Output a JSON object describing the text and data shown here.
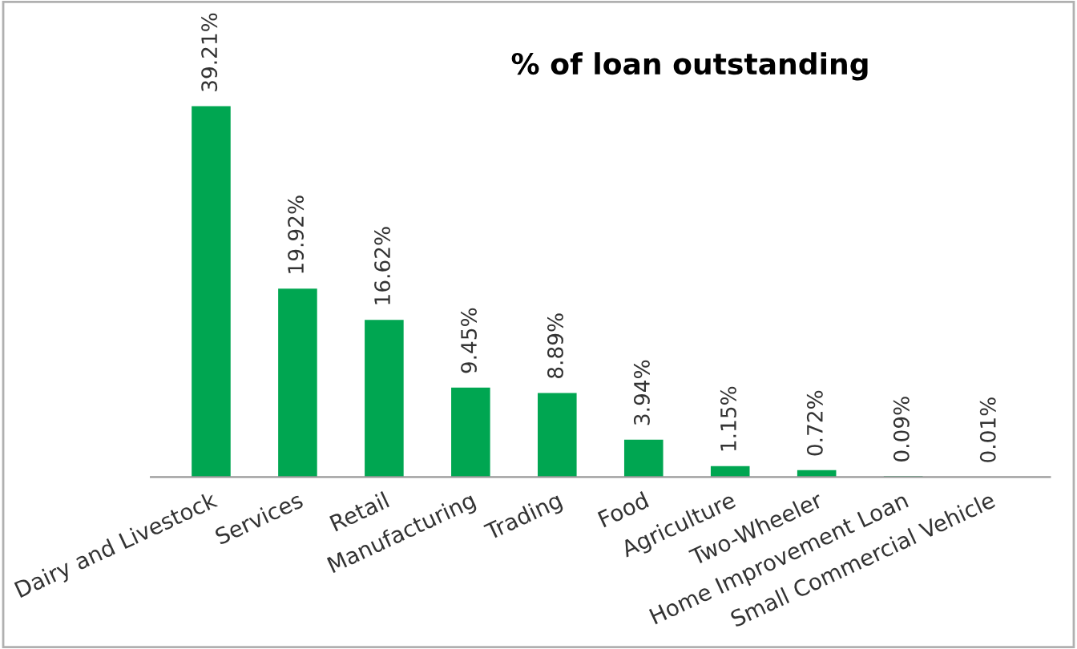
{
  "chart_data": {
    "type": "bar",
    "title": "% of loan outstanding",
    "categories": [
      "Dairy and Livestock",
      "Services",
      "Retail",
      "Manufacturing",
      "Trading",
      "Food",
      "Agriculture",
      "Two-Wheeler",
      "Home Improvement Loan",
      "Small Commercial Vehicle"
    ],
    "values": [
      39.21,
      19.92,
      16.62,
      9.45,
      8.89,
      3.94,
      1.15,
      0.72,
      0.09,
      0.01
    ],
    "value_labels": [
      "39.21%",
      "19.92%",
      "16.62%",
      "9.45%",
      "8.89%",
      "3.94%",
      "1.15%",
      "0.72%",
      "0.09%",
      "0.01%"
    ],
    "color": "#00a651",
    "grid": false,
    "legend": false
  }
}
